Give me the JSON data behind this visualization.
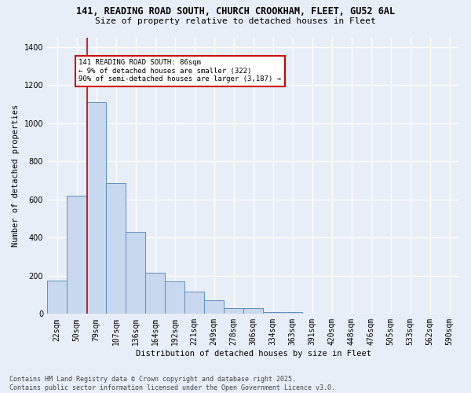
{
  "title1": "141, READING ROAD SOUTH, CHURCH CROOKHAM, FLEET, GU52 6AL",
  "title2": "Size of property relative to detached houses in Fleet",
  "xlabel": "Distribution of detached houses by size in Fleet",
  "ylabel": "Number of detached properties",
  "categories": [
    "22sqm",
    "50sqm",
    "79sqm",
    "107sqm",
    "136sqm",
    "164sqm",
    "192sqm",
    "221sqm",
    "249sqm",
    "278sqm",
    "306sqm",
    "334sqm",
    "363sqm",
    "391sqm",
    "420sqm",
    "448sqm",
    "476sqm",
    "505sqm",
    "533sqm",
    "562sqm",
    "590sqm"
  ],
  "values": [
    175,
    620,
    1110,
    685,
    430,
    215,
    170,
    115,
    70,
    30,
    30,
    10,
    10,
    0,
    0,
    0,
    0,
    0,
    0,
    0,
    0
  ],
  "bar_color": "#c8d8ee",
  "bar_edge_color": "#6090b8",
  "annotation_line1": "141 READING ROAD SOUTH: 86sqm",
  "annotation_line2": "← 9% of detached houses are smaller (322)",
  "annotation_line3": "90% of semi-detached houses are larger (3,187) →",
  "vline_color": "#cc0000",
  "annotation_box_edge": "#cc0000",
  "ylim": [
    0,
    1450
  ],
  "yticks": [
    0,
    200,
    400,
    600,
    800,
    1000,
    1200,
    1400
  ],
  "footer": "Contains HM Land Registry data © Crown copyright and database right 2025.\nContains public sector information licensed under the Open Government Licence v3.0.",
  "background_color": "#e8eef8",
  "grid_color": "#ffffff"
}
